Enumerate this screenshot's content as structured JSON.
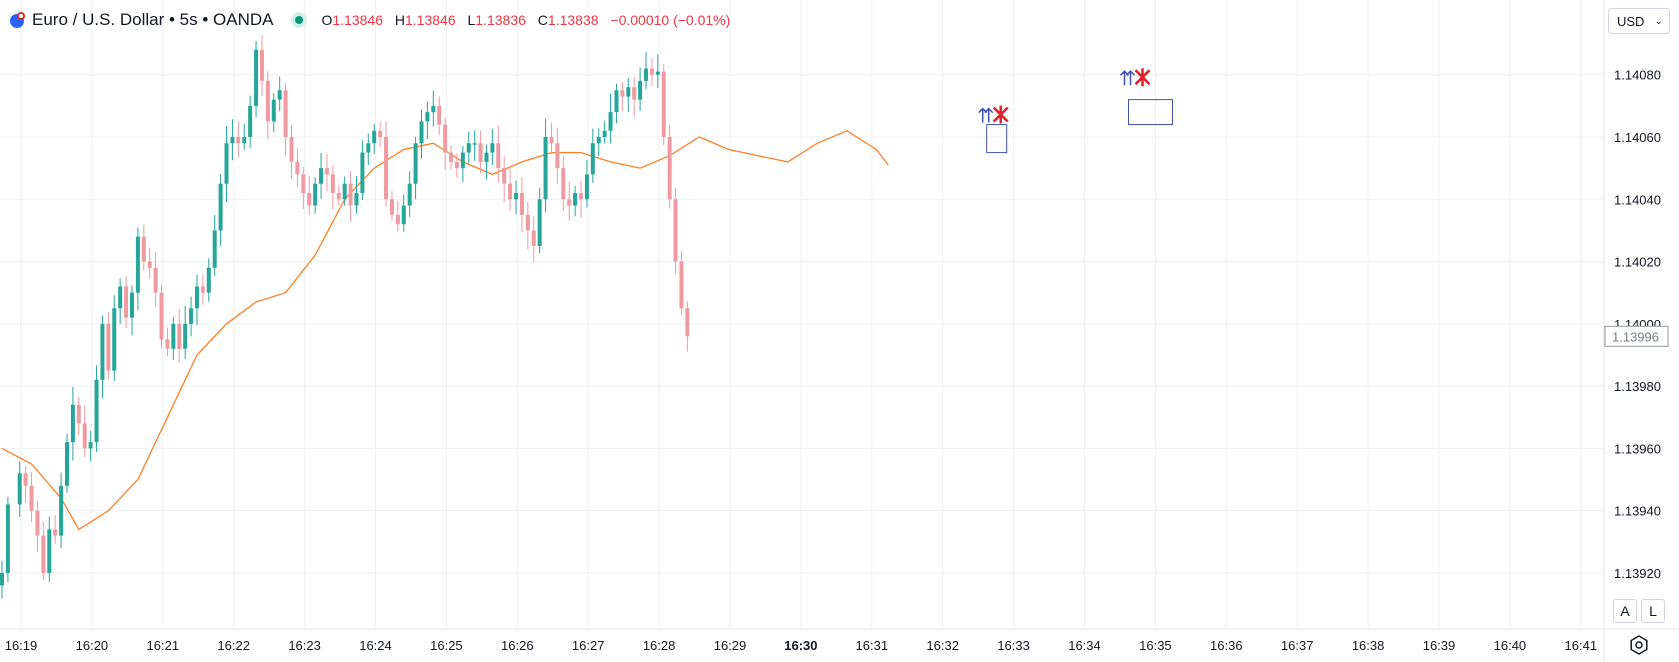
{
  "header": {
    "title": "Euro / U.S. Dollar • 5s • OANDA",
    "ohlc": {
      "o_label": "O",
      "o_value": "1.13846",
      "h_label": "H",
      "h_value": "1.13846",
      "l_label": "L",
      "l_value": "1.13836",
      "c_label": "C",
      "c_value": "1.13838",
      "change": "−0.00010 (−0.01%)"
    },
    "status_color": "#089981"
  },
  "currency_selector": {
    "label": "USD",
    "icon": "chevron-down-icon"
  },
  "scale_buttons": {
    "auto": "A",
    "log": "L"
  },
  "settings_icon": "gear-icon",
  "colors": {
    "up": "#26a69a",
    "down": "#ef9aa0",
    "ma": "#ff7f27",
    "last_price_border": "#9598a1"
  },
  "chart_data": {
    "type": "candlestick",
    "title": "Euro / U.S. Dollar • 5s • OANDA",
    "y_ticks": [
      "1.14080",
      "1.14060",
      "1.14040",
      "1.14020",
      "1.14000",
      "1.13980",
      "1.13960",
      "1.13940",
      "1.13920"
    ],
    "ylim": [
      1.13902,
      1.14104
    ],
    "x_ticks": [
      "16:19",
      "16:20",
      "16:21",
      "16:22",
      "16:23",
      "16:24",
      "16:25",
      "16:26",
      "16:27",
      "16:28",
      "16:29",
      "16:30",
      "16:31",
      "16:32",
      "16:33",
      "16:34",
      "16:35",
      "16:36",
      "16:37",
      "16:38",
      "16:39",
      "16:40",
      "16:41"
    ],
    "bold_x_tick": "16:30",
    "last_price": "1.13996",
    "closes": [
      [
        0,
        1.1392
      ],
      [
        1,
        1.13942
      ],
      [
        3,
        1.13952
      ],
      [
        4,
        1.13948
      ],
      [
        5,
        1.1394
      ],
      [
        6,
        1.13932
      ],
      [
        7,
        1.1392
      ],
      [
        8,
        1.13934
      ],
      [
        9,
        1.13932
      ],
      [
        10,
        1.13948
      ],
      [
        11,
        1.13962
      ],
      [
        12,
        1.13974
      ],
      [
        13,
        1.13968
      ],
      [
        14,
        1.1396
      ],
      [
        15,
        1.13962
      ],
      [
        16,
        1.13982
      ],
      [
        17,
        1.14
      ],
      [
        18,
        1.13985
      ],
      [
        19,
        1.14005
      ],
      [
        20,
        1.14012
      ],
      [
        21,
        1.14002
      ],
      [
        22,
        1.1401
      ],
      [
        23,
        1.14028
      ],
      [
        24,
        1.1402
      ],
      [
        25,
        1.14018
      ],
      [
        26,
        1.1401
      ],
      [
        27,
        1.13995
      ],
      [
        28,
        1.13992
      ],
      [
        29,
        1.14
      ],
      [
        30,
        1.13992
      ],
      [
        31,
        1.14
      ],
      [
        32,
        1.14005
      ],
      [
        33,
        1.14012
      ],
      [
        34,
        1.1401
      ],
      [
        35,
        1.14018
      ],
      [
        36,
        1.1403
      ],
      [
        37,
        1.14045
      ],
      [
        38,
        1.14058
      ],
      [
        39,
        1.1406
      ],
      [
        40,
        1.14058
      ],
      [
        41,
        1.1406
      ],
      [
        42,
        1.1407
      ],
      [
        43,
        1.14088
      ],
      [
        44,
        1.14078
      ],
      [
        45,
        1.14065
      ],
      [
        46,
        1.14072
      ],
      [
        47,
        1.14075
      ],
      [
        48,
        1.1406
      ],
      [
        49,
        1.14052
      ],
      [
        50,
        1.14048
      ],
      [
        51,
        1.14042
      ],
      [
        52,
        1.14038
      ],
      [
        53,
        1.14045
      ],
      [
        54,
        1.1405
      ],
      [
        55,
        1.14048
      ],
      [
        56,
        1.14042
      ],
      [
        57,
        1.1404
      ],
      [
        58,
        1.14045
      ],
      [
        59,
        1.14038
      ],
      [
        60,
        1.14042
      ],
      [
        61,
        1.14055
      ],
      [
        62,
        1.14058
      ],
      [
        63,
        1.14062
      ],
      [
        64,
        1.1406
      ],
      [
        65,
        1.1404
      ],
      [
        66,
        1.14035
      ],
      [
        67,
        1.14032
      ],
      [
        68,
        1.14038
      ],
      [
        69,
        1.14045
      ],
      [
        70,
        1.14058
      ],
      [
        71,
        1.14065
      ],
      [
        72,
        1.14068
      ],
      [
        73,
        1.1407
      ],
      [
        74,
        1.14064
      ],
      [
        75,
        1.14055
      ],
      [
        76,
        1.14052
      ],
      [
        77,
        1.1405
      ],
      [
        78,
        1.14055
      ],
      [
        79,
        1.14058
      ],
      [
        80,
        1.14058
      ],
      [
        81,
        1.14052
      ],
      [
        82,
        1.14055
      ],
      [
        83,
        1.14058
      ],
      [
        84,
        1.1405
      ],
      [
        85,
        1.14045
      ],
      [
        86,
        1.1404
      ],
      [
        87,
        1.14042
      ],
      [
        88,
        1.14035
      ],
      [
        89,
        1.1403
      ],
      [
        90,
        1.14025
      ],
      [
        91,
        1.1404
      ],
      [
        92,
        1.1406
      ],
      [
        93,
        1.14058
      ],
      [
        94,
        1.1405
      ],
      [
        95,
        1.1404
      ],
      [
        96,
        1.14038
      ],
      [
        97,
        1.14042
      ],
      [
        98,
        1.1404
      ],
      [
        99,
        1.14048
      ],
      [
        100,
        1.14058
      ],
      [
        101,
        1.1406
      ],
      [
        102,
        1.14062
      ],
      [
        103,
        1.14068
      ],
      [
        104,
        1.14075
      ],
      [
        105,
        1.14073
      ],
      [
        106,
        1.14076
      ],
      [
        107,
        1.14072
      ],
      [
        108,
        1.14078
      ],
      [
        109,
        1.14082
      ],
      [
        110,
        1.1408
      ],
      [
        111,
        1.14081
      ],
      [
        112,
        1.1406
      ],
      [
        113,
        1.1404
      ],
      [
        114,
        1.1402
      ],
      [
        115,
        1.14005
      ],
      [
        116,
        1.13996
      ]
    ],
    "moving_average": [
      [
        0,
        1.1396
      ],
      [
        5,
        1.13955
      ],
      [
        10,
        1.13944
      ],
      [
        13,
        1.13934
      ],
      [
        18,
        1.1394
      ],
      [
        23,
        1.1395
      ],
      [
        28,
        1.1397
      ],
      [
        33,
        1.1399
      ],
      [
        38,
        1.14
      ],
      [
        43,
        1.14007
      ],
      [
        48,
        1.1401
      ],
      [
        53,
        1.14022
      ],
      [
        58,
        1.1404
      ],
      [
        63,
        1.1405
      ],
      [
        68,
        1.14056
      ],
      [
        73,
        1.14058
      ],
      [
        78,
        1.14052
      ],
      [
        83,
        1.14048
      ],
      [
        88,
        1.14052
      ],
      [
        93,
        1.14055
      ],
      [
        98,
        1.14055
      ],
      [
        103,
        1.14052
      ],
      [
        108,
        1.1405
      ],
      [
        113,
        1.14054
      ],
      [
        118,
        1.1406
      ],
      [
        123,
        1.14056
      ],
      [
        128,
        1.14054
      ],
      [
        133,
        1.14052
      ],
      [
        138,
        1.14058
      ],
      [
        143,
        1.14062
      ],
      [
        148,
        1.14056
      ],
      [
        150,
        1.14051
      ]
    ],
    "annotations": [
      {
        "type": "signal",
        "x_tick": "16:32",
        "price": 1.14064,
        "box": [
          1.14055,
          1.14064
        ]
      },
      {
        "type": "signal",
        "x_tick": "16:34",
        "price": 1.14076,
        "box": [
          1.14064,
          1.14072
        ]
      }
    ]
  }
}
